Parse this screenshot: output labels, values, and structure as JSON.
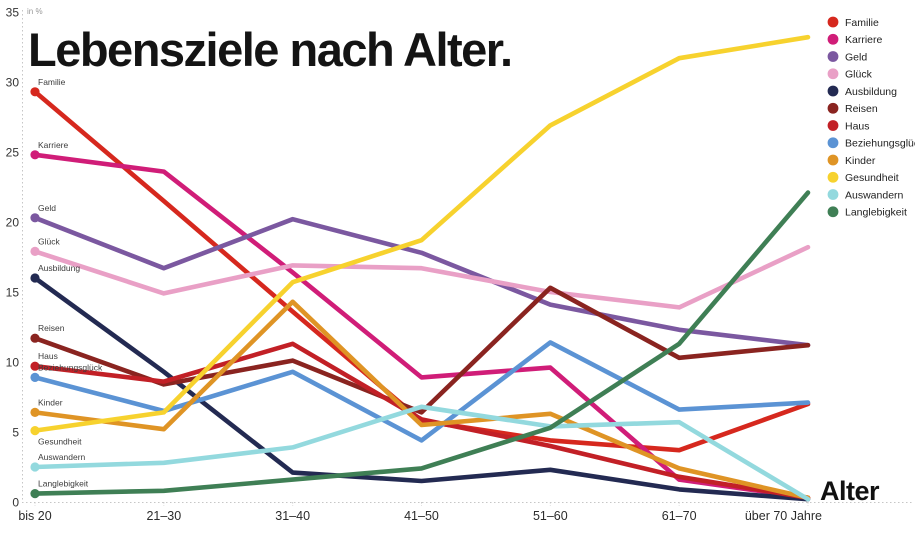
{
  "title": "Lebensziele nach Alter.",
  "unit_label": "in %",
  "x_axis_label": "Alter",
  "chart_data": {
    "type": "line",
    "categories": [
      "bis 20",
      "21–30",
      "31–40",
      "41–50",
      "51–60",
      "61–70",
      "über 70 Jahre"
    ],
    "ylim": [
      0,
      35
    ],
    "yticks": [
      0,
      5,
      10,
      15,
      20,
      25,
      30,
      35
    ],
    "grid": "dotted left axis and dotted baseline only",
    "legend_position": "top-right",
    "series": [
      {
        "name": "Familie",
        "color": "#d6281e",
        "values": [
          29.3,
          21.5,
          13.6,
          5.8,
          4.4,
          3.7,
          7.0
        ]
      },
      {
        "name": "Karriere",
        "color": "#d01d78",
        "values": [
          24.8,
          23.6,
          16.4,
          8.9,
          9.6,
          1.6,
          0.3
        ]
      },
      {
        "name": "Geld",
        "color": "#7b58a0",
        "values": [
          20.3,
          16.7,
          20.2,
          17.8,
          14.1,
          12.3,
          11.2
        ]
      },
      {
        "name": "Glück",
        "color": "#e9a0c6",
        "values": [
          17.9,
          14.9,
          16.9,
          16.7,
          15.0,
          13.9,
          18.2
        ]
      },
      {
        "name": "Ausbildung",
        "color": "#232a52",
        "values": [
          16.0,
          9.3,
          2.1,
          1.5,
          2.3,
          0.9,
          0.2
        ]
      },
      {
        "name": "Reisen",
        "color": "#8a2420",
        "values": [
          11.7,
          8.4,
          10.1,
          6.4,
          15.3,
          10.3,
          11.2
        ]
      },
      {
        "name": "Haus",
        "color": "#c22026",
        "values": [
          9.7,
          8.6,
          11.3,
          5.9,
          4.0,
          1.8,
          0.3
        ]
      },
      {
        "name": "Beziehungsglück",
        "color": "#5b93d4",
        "values": [
          8.9,
          6.5,
          9.3,
          4.4,
          11.4,
          6.6,
          7.1
        ]
      },
      {
        "name": "Kinder",
        "color": "#df9425",
        "values": [
          6.4,
          5.2,
          14.3,
          5.5,
          6.3,
          2.4,
          0.3
        ]
      },
      {
        "name": "Gesundheit",
        "color": "#f7d22e",
        "values": [
          5.1,
          6.4,
          15.7,
          18.7,
          26.9,
          31.7,
          33.2
        ],
        "label_below": true
      },
      {
        "name": "Auswandern",
        "color": "#93d9de",
        "values": [
          2.5,
          2.8,
          3.9,
          6.8,
          5.4,
          5.7,
          0.2
        ]
      },
      {
        "name": "Langlebigkeit",
        "color": "#3f7f55",
        "values": [
          0.6,
          0.8,
          1.6,
          2.4,
          5.3,
          11.3,
          22.1
        ]
      }
    ]
  }
}
